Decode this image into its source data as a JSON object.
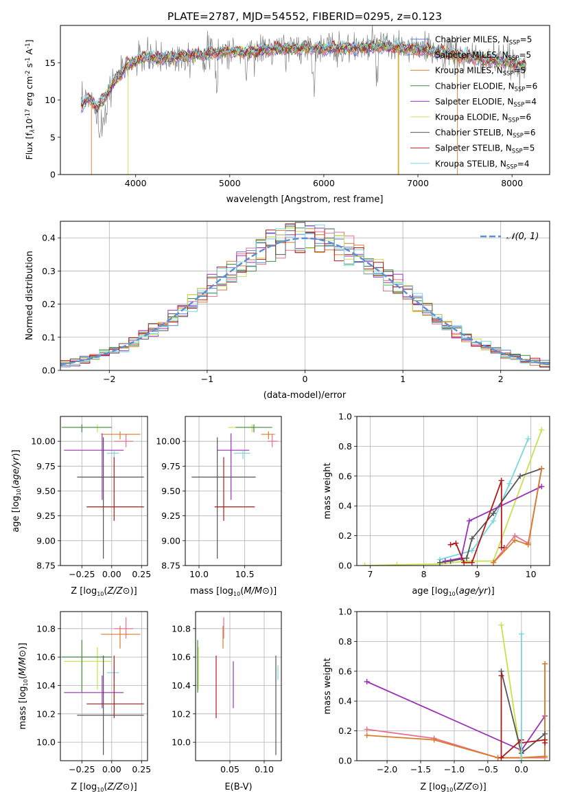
{
  "figure": {
    "title": "PLATE=2787, MJD=54552, FIBERID=0295, z=0.123"
  },
  "colors": {
    "Chabrier MILES": "#5a7fd8",
    "Salpeter MILES": "#e66f8c",
    "Kroupa MILES": "#d97b2a",
    "Chabrier ELODIE": "#3f8a3f",
    "Salpeter ELODIE": "#9a2fb8",
    "Kroupa ELODIE": "#c8e04a",
    "Chabrier STELIB": "#555555",
    "Salpeter STELIB": "#b01818",
    "Kroupa STELIB": "#76d7e0",
    "gaussian": "#5b8fd6"
  },
  "chart_data": [
    {
      "id": "spectrum",
      "type": "line",
      "xlabel": "wavelength [Angstrom, rest frame]",
      "ylabel_parts": [
        "Flux [f",
        "λ",
        "10",
        "-17",
        " erg cm",
        "-2",
        " s",
        "-1",
        " A",
        "-1",
        "]"
      ],
      "xlim": [
        3200,
        8400
      ],
      "ylim": [
        0,
        20
      ],
      "xticks": [
        "4000",
        "5000",
        "6000",
        "7000",
        "8000"
      ],
      "yticks": [
        "0",
        "5",
        "10",
        "15"
      ],
      "legend_position": "top-right",
      "legend": [
        {
          "label": "Chabrier MILES",
          "nssp": "5"
        },
        {
          "label": "Salpeter MILES",
          "nssp": "5"
        },
        {
          "label": "Kroupa MILES",
          "nssp": "5"
        },
        {
          "label": "Chabrier ELODIE",
          "nssp": "6"
        },
        {
          "label": "Salpeter ELODIE",
          "nssp": "4"
        },
        {
          "label": "Kroupa ELODIE",
          "nssp": "6"
        },
        {
          "label": "Chabrier STELIB",
          "nssp": "6"
        },
        {
          "label": "Salpeter STELIB",
          "nssp": "5"
        },
        {
          "label": "Kroupa STELIB",
          "nssp": "4"
        }
      ],
      "continuum": {
        "x": [
          3400,
          3500,
          3600,
          3700,
          3800,
          3900,
          4000,
          4100,
          4200,
          4400,
          4600,
          4800,
          5000,
          5200,
          5400,
          5600,
          5800,
          6000,
          6200,
          6400,
          6600,
          6800,
          7000,
          7200,
          7400,
          7600,
          7800,
          8000,
          8150
        ],
        "y": [
          9.0,
          10.2,
          9.0,
          11.0,
          13.0,
          14.5,
          15.2,
          15.8,
          15.5,
          15.8,
          16.0,
          16.3,
          16.5,
          16.4,
          16.8,
          16.9,
          17.0,
          16.9,
          17.0,
          17.0,
          17.2,
          17.0,
          16.8,
          16.5,
          16.0,
          15.6,
          15.3,
          15.0,
          14.5
        ]
      },
      "edge_drops": [
        {
          "series": "Kroupa MILES",
          "x": 3530
        },
        {
          "series": "Kroupa ELODIE",
          "x": 3920
        },
        {
          "series": "Kroupa ELODIE",
          "x": 6800
        },
        {
          "series": "Kroupa MILES",
          "x": 6790
        },
        {
          "series": "Kroupa MILES",
          "x": 7420
        }
      ]
    },
    {
      "id": "residuals",
      "type": "histogram",
      "xlabel": "(data-model)/error",
      "ylabel": "Normed distribution",
      "xlim": [
        -2.5,
        2.5
      ],
      "ylim": [
        0,
        0.45
      ],
      "xticks": [
        "−2",
        "−1",
        "0",
        "1",
        "2"
      ],
      "yticks": [
        "0.0",
        "0.1",
        "0.2",
        "0.3",
        "0.4"
      ],
      "legend_position": "top-right",
      "legend_label": "𝒩(0, 1)",
      "bin_width": 0.1
    },
    {
      "id": "age_vs_Z",
      "type": "errorbar",
      "xlabel": "Z [log10(Z/Z⊙)]",
      "ylabel": "age  [log10(age/yr)]",
      "xlim": [
        -0.43,
        0.3
      ],
      "ylim": [
        8.75,
        10.25
      ],
      "xticks": [
        "−0.25",
        "0.00",
        "0.25"
      ],
      "yticks": [
        "8.75",
        "9.00",
        "9.25",
        "9.50",
        "9.75",
        "10.00"
      ],
      "points": [
        {
          "series": "Kroupa ELODIE",
          "x": -0.12,
          "xerr": [
            0.28,
            0.12
          ],
          "y": 10.14,
          "yerr": [
            0.05,
            0.03
          ]
        },
        {
          "series": "Chabrier ELODIE",
          "x": -0.25,
          "xerr": [
            0.17,
            0.25
          ],
          "y": 10.14,
          "yerr": [
            0.05,
            0.03
          ]
        },
        {
          "series": "Salpeter ELODIE",
          "x": -0.08,
          "xerr": [
            0.32,
            0.18
          ],
          "y": 9.91,
          "yerr": [
            0.5,
            0.17
          ]
        },
        {
          "series": "Salpeter MILES",
          "x": 0.12,
          "xerr": [
            0.1,
            0.06
          ],
          "y": 10.0,
          "yerr": [
            0.06,
            0.07
          ]
        },
        {
          "series": "Kroupa MILES",
          "x": 0.07,
          "xerr": [
            0.16,
            0.17
          ],
          "y": 10.07,
          "yerr": [
            0.05,
            0.03
          ]
        },
        {
          "series": "Kroupa STELIB",
          "x": 0.02,
          "xerr": [
            0.06,
            0.04
          ],
          "y": 9.88,
          "yerr": [
            0.06,
            0.02
          ]
        },
        {
          "series": "Chabrier STELIB",
          "x": -0.07,
          "xerr": [
            0.22,
            0.34
          ],
          "y": 9.64,
          "yerr": [
            0.82,
            0.4
          ]
        },
        {
          "series": "Salpeter STELIB",
          "x": 0.02,
          "xerr": [
            0.23,
            0.25
          ],
          "y": 9.34,
          "yerr": [
            0.14,
            0.5
          ]
        }
      ]
    },
    {
      "id": "age_vs_mass",
      "type": "errorbar",
      "xlabel": "mass [log10(M/M⊙)]",
      "ylabel": "",
      "xlim": [
        9.85,
        10.9
      ],
      "ylim": [
        8.75,
        10.25
      ],
      "xticks": [
        "10.0",
        "10.5"
      ],
      "yticks": [
        "8.75",
        "9.00",
        "9.25",
        "9.50",
        "9.75",
        "10.00"
      ],
      "points": [
        {
          "series": "Kroupa ELODIE",
          "x": 10.58,
          "xerr": [
            0.26,
            0.1
          ],
          "y": 10.14,
          "yerr": [
            0.05,
            0.03
          ]
        },
        {
          "series": "Chabrier ELODIE",
          "x": 10.6,
          "xerr": [
            0.2,
            0.2
          ],
          "y": 10.14,
          "yerr": [
            0.05,
            0.03
          ]
        },
        {
          "series": "Salpeter ELODIE",
          "x": 10.35,
          "xerr": [
            0.15,
            0.2
          ],
          "y": 9.91,
          "yerr": [
            0.5,
            0.17
          ]
        },
        {
          "series": "Salpeter MILES",
          "x": 10.8,
          "xerr": [
            0.05,
            0.06
          ],
          "y": 10.0,
          "yerr": [
            0.06,
            0.07
          ]
        },
        {
          "series": "Kroupa MILES",
          "x": 10.76,
          "xerr": [
            0.08,
            0.07
          ],
          "y": 10.07,
          "yerr": [
            0.05,
            0.03
          ]
        },
        {
          "series": "Kroupa STELIB",
          "x": 10.48,
          "xerr": [
            0.1,
            0.08
          ],
          "y": 9.88,
          "yerr": [
            0.06,
            0.02
          ]
        },
        {
          "series": "Chabrier STELIB",
          "x": 10.2,
          "xerr": [
            0.28,
            0.42
          ],
          "y": 9.64,
          "yerr": [
            0.82,
            0.4
          ]
        },
        {
          "series": "Salpeter STELIB",
          "x": 10.27,
          "xerr": [
            0.1,
            0.34
          ],
          "y": 9.34,
          "yerr": [
            0.14,
            0.5
          ]
        }
      ]
    },
    {
      "id": "mw_vs_age",
      "type": "line",
      "xlabel": "age  [log10(age/yr)]",
      "ylabel": "mass weight",
      "xlim": [
        6.75,
        10.35
      ],
      "ylim": [
        0,
        1
      ],
      "xticks": [
        "7",
        "8",
        "9",
        "10"
      ],
      "yticks": [
        "0.0",
        "0.2",
        "0.4",
        "0.6",
        "0.8",
        "1.0"
      ],
      "series": [
        {
          "name": "Kroupa ELODIE",
          "x": [
            6.9,
            7.5,
            8.3,
            8.8,
            9.3,
            10.2
          ],
          "y": [
            0.0,
            0.005,
            0.01,
            0.03,
            0.03,
            0.91
          ]
        },
        {
          "name": "Kroupa STELIB",
          "x": [
            8.3,
            8.9,
            9.3,
            9.6,
            9.95
          ],
          "y": [
            0.04,
            0.1,
            0.3,
            0.55,
            0.85
          ]
        },
        {
          "name": "Chabrier STELIB",
          "x": [
            8.3,
            8.5,
            8.8,
            8.9,
            9.3,
            9.8,
            10.2
          ],
          "y": [
            0.02,
            0.03,
            0.05,
            0.18,
            0.35,
            0.6,
            0.65
          ]
        },
        {
          "name": "Salpeter ELODIE",
          "x": [
            8.4,
            8.7,
            8.85,
            10.2
          ],
          "y": [
            0.03,
            0.05,
            0.3,
            0.53
          ]
        },
        {
          "name": "Salpeter STELIB",
          "x": [
            8.5,
            8.6,
            8.75,
            8.9,
            9.45,
            9.45,
            9.5
          ],
          "y": [
            0.14,
            0.15,
            0.02,
            0.02,
            0.57,
            0.12,
            0.12
          ]
        },
        {
          "name": "Salpeter MILES",
          "x": [
            9.3,
            9.7,
            9.95,
            10.2
          ],
          "y": [
            0.02,
            0.2,
            0.15,
            0.65
          ]
        },
        {
          "name": "Kroupa MILES",
          "x": [
            9.3,
            9.7,
            9.95,
            10.2
          ],
          "y": [
            0.02,
            0.17,
            0.14,
            0.65
          ]
        }
      ]
    },
    {
      "id": "mass_vs_Z",
      "type": "errorbar",
      "xlabel": "Z [log10(Z/Z⊙)]",
      "ylabel": "mass [log10(M/M⊙)]",
      "xlim": [
        -0.43,
        0.3
      ],
      "ylim": [
        9.87,
        10.92
      ],
      "xticks": [
        "−0.25",
        "0.00",
        "0.25"
      ],
      "yticks": [
        "10.0",
        "10.2",
        "10.4",
        "10.6",
        "10.8"
      ],
      "points": [
        {
          "series": "Salpeter MILES",
          "x": 0.12,
          "xerr": [
            0.1,
            0.06
          ],
          "y": 10.8,
          "yerr": [
            0.07,
            0.08
          ]
        },
        {
          "series": "Kroupa MILES",
          "x": 0.07,
          "xerr": [
            0.16,
            0.17
          ],
          "y": 10.76,
          "yerr": [
            0.1,
            0.06
          ]
        },
        {
          "series": "Kroupa ELODIE",
          "x": -0.12,
          "xerr": [
            0.28,
            0.12
          ],
          "y": 10.57,
          "yerr": [
            0.2,
            0.1
          ]
        },
        {
          "series": "Chabrier ELODIE",
          "x": -0.25,
          "xerr": [
            0.17,
            0.25
          ],
          "y": 10.6,
          "yerr": [
            0.25,
            0.12
          ]
        },
        {
          "series": "Kroupa STELIB",
          "x": 0.02,
          "xerr": [
            0.06,
            0.04
          ],
          "y": 10.49,
          "yerr": [
            0.05,
            0.02
          ]
        },
        {
          "series": "Salpeter ELODIE",
          "x": -0.08,
          "xerr": [
            0.32,
            0.18
          ],
          "y": 10.35,
          "yerr": [
            0.11,
            0.12
          ]
        },
        {
          "series": "Salpeter STELIB",
          "x": 0.02,
          "xerr": [
            0.23,
            0.25
          ],
          "y": 10.27,
          "yerr": [
            0.1,
            0.34
          ]
        },
        {
          "series": "Chabrier STELIB",
          "x": -0.07,
          "xerr": [
            0.22,
            0.34
          ],
          "y": 10.19,
          "yerr": [
            0.28,
            0.42
          ]
        }
      ]
    },
    {
      "id": "mass_vs_EBV",
      "type": "errorbar",
      "xlabel": "E(B-V)",
      "ylabel": "",
      "xlim": [
        0.0,
        0.125
      ],
      "ylim": [
        9.87,
        10.92
      ],
      "xticks": [
        "0.05",
        "0.10"
      ],
      "yticks": [
        "10.0",
        "10.2",
        "10.4",
        "10.6",
        "10.8"
      ],
      "points": [
        {
          "series": "Salpeter MILES",
          "x": 0.041,
          "y": 10.8,
          "yerr": [
            0.07,
            0.08
          ]
        },
        {
          "series": "Kroupa MILES",
          "x": 0.04,
          "y": 10.76,
          "yerr": [
            0.1,
            0.06
          ]
        },
        {
          "series": "Kroupa ELODIE",
          "x": 0.004,
          "y": 10.57,
          "yerr": [
            0.2,
            0.1
          ]
        },
        {
          "series": "Chabrier ELODIE",
          "x": 0.003,
          "y": 10.6,
          "yerr": [
            0.25,
            0.12
          ]
        },
        {
          "series": "Kroupa STELIB",
          "x": 0.12,
          "y": 10.49,
          "yerr": [
            0.05,
            0.05
          ]
        },
        {
          "series": "Salpeter ELODIE",
          "x": 0.055,
          "y": 10.35,
          "yerr": [
            0.11,
            0.22
          ]
        },
        {
          "series": "Salpeter STELIB",
          "x": 0.03,
          "y": 10.27,
          "yerr": [
            0.1,
            0.34
          ]
        },
        {
          "series": "Chabrier STELIB",
          "x": 0.117,
          "y": 10.19,
          "yerr": [
            0.28,
            0.42
          ]
        }
      ]
    },
    {
      "id": "mw_vs_Z",
      "type": "line",
      "xlabel": "Z [log10(Z/Z⊙)]",
      "ylabel": "mass weight",
      "xlim": [
        -2.45,
        0.42
      ],
      "ylim": [
        0,
        1
      ],
      "xticks": [
        "−2.0",
        "−1.5",
        "−1.0",
        "−0.5",
        "0.0"
      ],
      "yticks": [
        "0.0",
        "0.2",
        "0.4",
        "0.6",
        "0.8",
        "1.0"
      ],
      "series": [
        {
          "name": "Salpeter ELODIE",
          "x": [
            -2.3,
            0.0,
            0.35,
            0.35
          ],
          "y": [
            0.53,
            0.07,
            0.3,
            0.0
          ]
        },
        {
          "name": "Salpeter MILES",
          "x": [
            -2.3,
            -1.3,
            -0.35,
            0.0,
            0.35,
            0.35
          ],
          "y": [
            0.21,
            0.15,
            0.02,
            0.02,
            0.02,
            0.65
          ]
        },
        {
          "name": "Kroupa MILES",
          "x": [
            -2.3,
            -1.3,
            -0.35,
            0.0,
            0.35,
            0.35
          ],
          "y": [
            0.17,
            0.14,
            0.02,
            0.02,
            0.03,
            0.65
          ]
        },
        {
          "name": "Kroupa ELODIE",
          "x": [
            -0.3,
            0.0,
            0.35
          ],
          "y": [
            0.91,
            0.0,
            0.0
          ]
        },
        {
          "name": "Chabrier STELIB",
          "x": [
            -0.3,
            0.0,
            0.35
          ],
          "y": [
            0.6,
            0.05,
            0.18
          ]
        },
        {
          "name": "Salpeter STELIB",
          "x": [
            -0.3,
            -0.3,
            0.0,
            0.0,
            0.35,
            0.35
          ],
          "y": [
            0.57,
            0.02,
            0.14,
            0.12,
            0.14,
            0.12
          ]
        },
        {
          "name": "Kroupa STELIB",
          "x": [
            0.0,
            0.0
          ],
          "y": [
            0.85,
            0.0
          ]
        }
      ]
    }
  ]
}
